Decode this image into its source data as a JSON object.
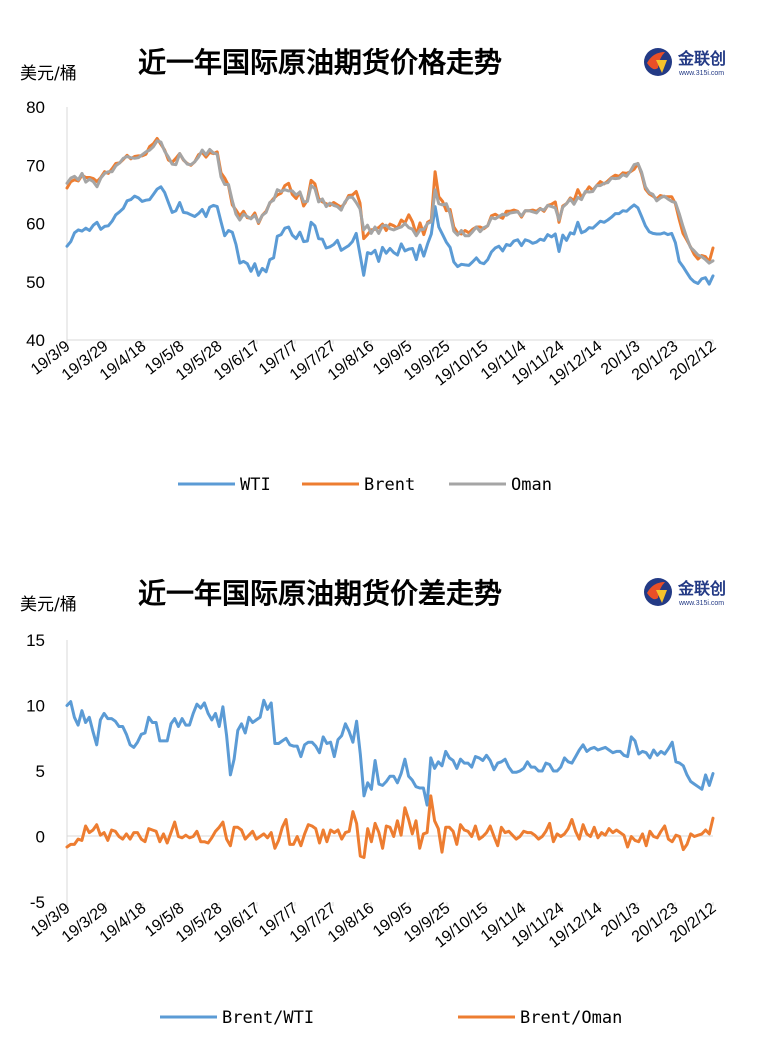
{
  "logo": {
    "name": "金联创",
    "url": "www.315i.com"
  },
  "colors": {
    "blue": "#5b9bd5",
    "orange": "#ed7d31",
    "gray": "#a5a5a5"
  },
  "chart_data": [
    {
      "type": "line",
      "title": "近一年国际原油期货价格走势",
      "unit": "美元/桶",
      "ylim": [
        40,
        80
      ],
      "yticks": [
        40,
        50,
        60,
        70,
        80
      ],
      "xticks": [
        "19/3/9",
        "19/3/29",
        "19/4/18",
        "19/5/8",
        "19/5/28",
        "19/6/17",
        "19/7/7",
        "19/7/27",
        "19/8/16",
        "19/9/5",
        "19/9/25",
        "19/10/15",
        "19/11/4",
        "19/11/24",
        "19/12/14",
        "20/1/3",
        "20/1/23",
        "20/2/12"
      ],
      "grid": false,
      "legend_position": "bottom",
      "series": [
        {
          "name": "WTI",
          "color": "#5b9bd5",
          "values": [
            56.1,
            56.9,
            58.4,
            58.9,
            58.7,
            59.2,
            58.8,
            59.7,
            60.2,
            59.0,
            59.5,
            59.6,
            60.4,
            61.5,
            62.0,
            62.6,
            63.9,
            64.1,
            64.7,
            64.4,
            63.8,
            64.0,
            64.1,
            65.0,
            65.9,
            66.3,
            65.3,
            63.6,
            61.9,
            62.2,
            63.6,
            61.9,
            61.8,
            61.5,
            61.2,
            61.7,
            62.4,
            61.2,
            62.8,
            63.1,
            62.9,
            60.3,
            57.9,
            58.8,
            58.5,
            56.4,
            53.2,
            53.5,
            53.1,
            51.8,
            53.1,
            51.1,
            52.3,
            51.7,
            53.8,
            54.1,
            57.8,
            58.1,
            59.2,
            59.4,
            58.0,
            57.4,
            58.5,
            56.9,
            57.0,
            60.2,
            59.6,
            57.4,
            57.3,
            55.8,
            56.0,
            56.4,
            57.1,
            55.4,
            55.8,
            56.2,
            56.9,
            58.3,
            54.7,
            51.1,
            55.0,
            54.8,
            55.4,
            53.5,
            55.9,
            54.9,
            55.7,
            55.0,
            54.6,
            56.5,
            55.3,
            55.6,
            55.7,
            53.8,
            56.3,
            54.4,
            56.5,
            58.2,
            62.9,
            59.4,
            58.1,
            56.8,
            55.9,
            53.4,
            52.6,
            53.0,
            52.9,
            52.8,
            53.4,
            54.1,
            53.3,
            53.1,
            53.8,
            55.1,
            55.8,
            56.1,
            55.3,
            56.4,
            56.2,
            57.0,
            57.2,
            56.2,
            57.2,
            57.0,
            56.6,
            56.8,
            57.3,
            57.1,
            58.1,
            57.7,
            58.2,
            55.2,
            58.0,
            57.1,
            58.4,
            58.2,
            60.2,
            58.4,
            58.7,
            59.3,
            59.2,
            59.8,
            60.4,
            60.2,
            60.6,
            61.1,
            61.7,
            61.7,
            62.2,
            62.1,
            62.7,
            63.2,
            62.7,
            61.2,
            59.6,
            58.6,
            58.3,
            58.2,
            58.2,
            58.4,
            58.1,
            58.3,
            56.7,
            53.5,
            52.6,
            51.6,
            50.6,
            50.0,
            49.7,
            50.5,
            50.7,
            49.6,
            51.0
          ]
        },
        {
          "name": "Brent",
          "color": "#ed7d31",
          "values": [
            66.1,
            67.2,
            67.5,
            67.3,
            68.3,
            67.9,
            67.9,
            67.7,
            67.2,
            67.9,
            68.9,
            68.6,
            69.4,
            70.3,
            70.4,
            71.0,
            71.7,
            71.1,
            71.5,
            71.6,
            71.6,
            71.9,
            73.2,
            73.7,
            74.6,
            73.6,
            72.6,
            70.9,
            70.5,
            71.2,
            72.0,
            70.9,
            70.3,
            70.0,
            70.6,
            71.8,
            72.2,
            71.4,
            72.2,
            72.0,
            72.3,
            68.7,
            67.8,
            66.5,
            63.2,
            62.3,
            61.3,
            62.1,
            61.0,
            60.9,
            61.8,
            60.0,
            61.4,
            62.1,
            63.5,
            64.3,
            64.9,
            65.2,
            66.5,
            66.9,
            65.0,
            64.3,
            65.4,
            63.0,
            64.0,
            67.4,
            66.8,
            64.3,
            63.7,
            63.4,
            63.1,
            63.6,
            63.2,
            62.8,
            63.5,
            64.8,
            64.9,
            65.5,
            63.5,
            57.4,
            58.1,
            58.9,
            59.0,
            59.3,
            59.9,
            58.8,
            59.9,
            59.6,
            59.2,
            60.6,
            60.1,
            61.5,
            60.3,
            58.1,
            60.1,
            58.1,
            60.2,
            60.6,
            68.9,
            64.6,
            63.8,
            62.2,
            62.4,
            59.4,
            58.4,
            58.2,
            58.8,
            58.4,
            59.0,
            59.4,
            59.4,
            59.1,
            59.6,
            61.3,
            61.6,
            61.2,
            60.9,
            62.1,
            62.1,
            62.3,
            62.1,
            61.1,
            62.2,
            62.2,
            62.3,
            62.1,
            62.6,
            62.1,
            63.1,
            63.3,
            63.7,
            60.2,
            63.0,
            63.4,
            64.4,
            63.9,
            65.8,
            64.5,
            65.3,
            66.3,
            65.7,
            66.5,
            67.2,
            66.8,
            67.3,
            67.9,
            68.3,
            68.1,
            68.7,
            68.6,
            68.9,
            69.3,
            70.3,
            68.5,
            65.9,
            65.1,
            64.7,
            64.2,
            64.8,
            64.6,
            64.6,
            64.6,
            63.4,
            60.7,
            58.3,
            57.2,
            56.0,
            54.7,
            53.9,
            54.5,
            54.3,
            53.4,
            55.8
          ]
        },
        {
          "name": "Oman",
          "color": "#a5a5a5",
          "values": [
            66.9,
            67.8,
            68.1,
            67.5,
            68.6,
            67.1,
            67.6,
            67.2,
            66.3,
            67.8,
            68.6,
            68.9,
            68.9,
            69.9,
            70.4,
            71.2,
            71.5,
            71.3,
            71.2,
            71.3,
            71.8,
            72.3,
            72.6,
            73.2,
            74.2,
            74.0,
            72.4,
            71.4,
            70.2,
            70.1,
            72.0,
            71.0,
            70.2,
            70.1,
            70.6,
            71.4,
            72.6,
            71.8,
            72.7,
            72.1,
            71.9,
            68.0,
            66.7,
            66.7,
            63.9,
            61.6,
            60.6,
            61.6,
            61.2,
            60.8,
            61.4,
            60.2,
            61.4,
            61.9,
            63.6,
            64.0,
            65.8,
            65.5,
            65.8,
            65.6,
            65.6,
            64.9,
            65.4,
            63.7,
            63.8,
            66.5,
            66.0,
            63.7,
            64.2,
            62.9,
            63.5,
            63.1,
            62.9,
            62.3,
            63.7,
            64.5,
            64.5,
            63.6,
            62.5,
            58.9,
            59.7,
            58.3,
            59.4,
            58.3,
            59.6,
            59.7,
            59.1,
            58.9,
            59.2,
            59.4,
            60.0,
            59.3,
            59.0,
            57.9,
            58.9,
            59.0,
            60.0,
            60.3,
            65.8,
            63.4,
            63.2,
            63.4,
            61.7,
            58.7,
            58.0,
            58.8,
            57.9,
            57.9,
            58.6,
            59.4,
            58.6,
            59.3,
            59.6,
            61.0,
            60.8,
            61.2,
            61.6,
            61.4,
            61.8,
            61.9,
            62.0,
            61.3,
            62.2,
            62.2,
            62.0,
            61.8,
            62.5,
            62.3,
            63.1,
            62.9,
            62.7,
            60.6,
            62.8,
            63.4,
            64.2,
            63.3,
            64.5,
            64.1,
            65.5,
            65.4,
            65.5,
            66.5,
            66.5,
            66.9,
            67.0,
            67.8,
            67.7,
            67.8,
            68.4,
            68.1,
            69.0,
            70.1,
            70.3,
            68.8,
            66.3,
            65.3,
            65.0,
            63.9,
            64.4,
            64.7,
            64.2,
            63.8,
            63.6,
            61.7,
            59.5,
            57.6,
            55.9,
            55.3,
            54.6,
            54.3,
            53.8,
            53.2,
            53.6
          ]
        }
      ]
    },
    {
      "type": "line",
      "title": "近一年国际原油期货价差走势",
      "unit": "美元/桶",
      "ylim": [
        -5,
        15
      ],
      "yticks": [
        -5,
        0,
        5,
        10,
        15
      ],
      "xticks": [
        "19/3/9",
        "19/3/29",
        "19/4/18",
        "19/5/8",
        "19/5/28",
        "19/6/17",
        "19/7/7",
        "19/7/27",
        "19/8/16",
        "19/9/5",
        "19/9/25",
        "19/10/15",
        "19/11/4",
        "19/11/24",
        "19/12/14",
        "20/1/3",
        "20/1/23",
        "20/2/12"
      ],
      "grid": false,
      "legend_position": "bottom",
      "series": [
        {
          "name": "Brent/WTI",
          "color": "#5b9bd5",
          "values": [
            10.0,
            10.3,
            9.1,
            8.5,
            9.6,
            8.7,
            9.1,
            8.0,
            7.0,
            8.9,
            9.4,
            9.0,
            9.0,
            8.8,
            8.4,
            8.4,
            7.8,
            7.0,
            6.8,
            7.2,
            7.8,
            7.9,
            9.1,
            8.7,
            8.7,
            7.3,
            7.3,
            7.3,
            8.6,
            9.0,
            8.4,
            9.0,
            8.5,
            8.5,
            9.4,
            10.1,
            9.8,
            10.2,
            9.4,
            8.9,
            9.4,
            8.4,
            9.9,
            7.7,
            4.7,
            5.9,
            8.1,
            8.6,
            7.9,
            9.1,
            8.7,
            8.9,
            9.1,
            10.4,
            9.7,
            10.2,
            7.1,
            7.1,
            7.3,
            7.5,
            7.0,
            6.9,
            6.9,
            6.1,
            7.0,
            7.2,
            7.2,
            6.9,
            6.4,
            7.6,
            7.1,
            7.2,
            6.1,
            7.4,
            7.7,
            8.6,
            8.0,
            7.2,
            8.8,
            6.3,
            3.1,
            4.1,
            3.6,
            5.8,
            4.0,
            3.9,
            4.2,
            4.6,
            4.6,
            4.1,
            4.8,
            5.9,
            4.6,
            4.3,
            3.8,
            3.7,
            3.7,
            2.4,
            6.0,
            5.2,
            5.7,
            5.4,
            6.5,
            6.0,
            5.8,
            5.2,
            5.9,
            5.6,
            5.6,
            5.3,
            6.1,
            6.0,
            5.8,
            6.2,
            5.8,
            5.1,
            5.6,
            5.7,
            5.9,
            5.3,
            4.9,
            4.9,
            5.0,
            5.2,
            5.7,
            5.3,
            5.3,
            5.0,
            5.0,
            5.6,
            5.5,
            5.0,
            5.0,
            5.3,
            6.0,
            5.7,
            5.6,
            6.1,
            6.6,
            7.0,
            6.5,
            6.7,
            6.8,
            6.6,
            6.7,
            6.8,
            6.6,
            6.4,
            6.5,
            6.5,
            6.2,
            6.1,
            7.6,
            7.3,
            6.3,
            6.5,
            6.4,
            6.0,
            6.6,
            6.2,
            6.5,
            6.3,
            6.7,
            7.2,
            5.7,
            5.6,
            5.4,
            4.7,
            4.2,
            4.0,
            3.8,
            3.6,
            4.7,
            3.9,
            4.8
          ]
        },
        {
          "name": "Brent/Oman",
          "color": "#ed7d31",
          "values": [
            -0.8,
            -0.6,
            -0.6,
            -0.2,
            -0.3,
            0.8,
            0.3,
            0.5,
            0.9,
            0.1,
            0.3,
            -0.3,
            0.5,
            0.4,
            0.0,
            -0.2,
            0.2,
            -0.2,
            0.3,
            0.3,
            -0.2,
            -0.4,
            0.6,
            0.5,
            0.4,
            -0.4,
            0.2,
            -0.5,
            0.3,
            1.1,
            0.0,
            -0.1,
            0.1,
            -0.1,
            0.0,
            0.4,
            -0.4,
            -0.4,
            -0.5,
            -0.1,
            0.4,
            0.7,
            1.1,
            -0.2,
            -0.7,
            0.7,
            0.7,
            0.5,
            -0.2,
            0.1,
            0.4,
            -0.2,
            0.0,
            0.2,
            -0.1,
            0.3,
            -0.9,
            -0.3,
            0.7,
            1.3,
            -0.6,
            -0.6,
            0.0,
            -0.7,
            0.2,
            0.9,
            0.8,
            0.6,
            -0.5,
            0.5,
            -0.4,
            0.5,
            0.3,
            0.5,
            -0.2,
            0.3,
            0.4,
            1.9,
            1.0,
            -1.5,
            -1.6,
            0.6,
            -0.4,
            1.0,
            0.3,
            -0.9,
            0.8,
            0.7,
            0.0,
            1.2,
            0.1,
            2.2,
            1.3,
            0.2,
            1.2,
            -0.9,
            0.2,
            0.3,
            3.1,
            1.2,
            0.6,
            -1.2,
            0.7,
            0.7,
            0.4,
            -0.6,
            0.9,
            0.5,
            0.4,
            0.0,
            0.8,
            -0.2,
            0.0,
            0.3,
            0.8,
            0.0,
            -0.7,
            0.7,
            0.3,
            0.4,
            0.1,
            -0.2,
            0.0,
            0.4,
            0.3,
            0.3,
            0.1,
            -0.2,
            0.0,
            0.4,
            1.0,
            -0.4,
            0.2,
            0.0,
            0.2,
            0.6,
            1.3,
            0.4,
            -0.2,
            0.9,
            0.2,
            0.0,
            0.7,
            -0.1,
            0.3,
            0.1,
            0.6,
            0.3,
            0.5,
            0.3,
            0.1,
            -0.8,
            0.0,
            -0.3,
            -0.4,
            0.2,
            -0.7,
            0.4,
            0.0,
            -0.1,
            0.4,
            0.8,
            -0.2,
            -0.4,
            0.1,
            0.0,
            -1.0,
            -0.6,
            0.2,
            0.0,
            0.1,
            0.2,
            0.5,
            0.2,
            1.4
          ]
        }
      ]
    }
  ]
}
